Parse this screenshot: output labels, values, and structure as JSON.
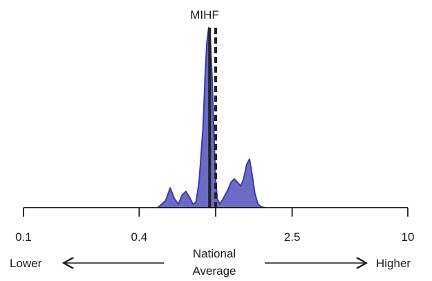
{
  "chart_data": {
    "type": "area",
    "title": "MIHF",
    "x_scale": "log",
    "xlim": [
      0.1,
      10
    ],
    "x_ticks": [
      {
        "value": 0.1,
        "label": "0.1"
      },
      {
        "value": 0.4,
        "label": "0.4"
      },
      {
        "value": 1.0,
        "label": ""
      },
      {
        "value": 2.5,
        "label": "2.5"
      },
      {
        "value": 10,
        "label": "10"
      }
    ],
    "density": {
      "x": [
        0.5,
        0.55,
        0.58,
        0.61,
        0.64,
        0.67,
        0.7,
        0.73,
        0.76,
        0.79,
        0.82,
        0.86,
        0.88,
        0.9,
        0.92,
        0.94,
        0.96,
        0.98,
        1.0,
        1.02,
        1.05,
        1.08,
        1.12,
        1.16,
        1.2,
        1.25,
        1.3,
        1.35,
        1.4,
        1.45,
        1.5,
        1.55,
        1.6,
        1.66,
        1.72,
        1.8
      ],
      "y": [
        0.0,
        0.04,
        0.11,
        0.05,
        0.02,
        0.07,
        0.09,
        0.06,
        0.02,
        0.03,
        0.14,
        0.45,
        0.72,
        0.92,
        1.0,
        0.93,
        0.7,
        0.4,
        0.15,
        0.05,
        0.02,
        0.04,
        0.07,
        0.1,
        0.14,
        0.16,
        0.14,
        0.12,
        0.16,
        0.24,
        0.27,
        0.18,
        0.08,
        0.02,
        0.005,
        0.0
      ]
    },
    "reference_line_solid": 0.93,
    "reference_line_dashed": 1.0,
    "fill_color": "#6b6bc4",
    "stroke_color": "#3a3ab0",
    "line_color": "#222222",
    "bottom_labels": {
      "lower": "Lower",
      "center_line1": "National",
      "center_line2": "Average",
      "higher": "Higher"
    }
  }
}
